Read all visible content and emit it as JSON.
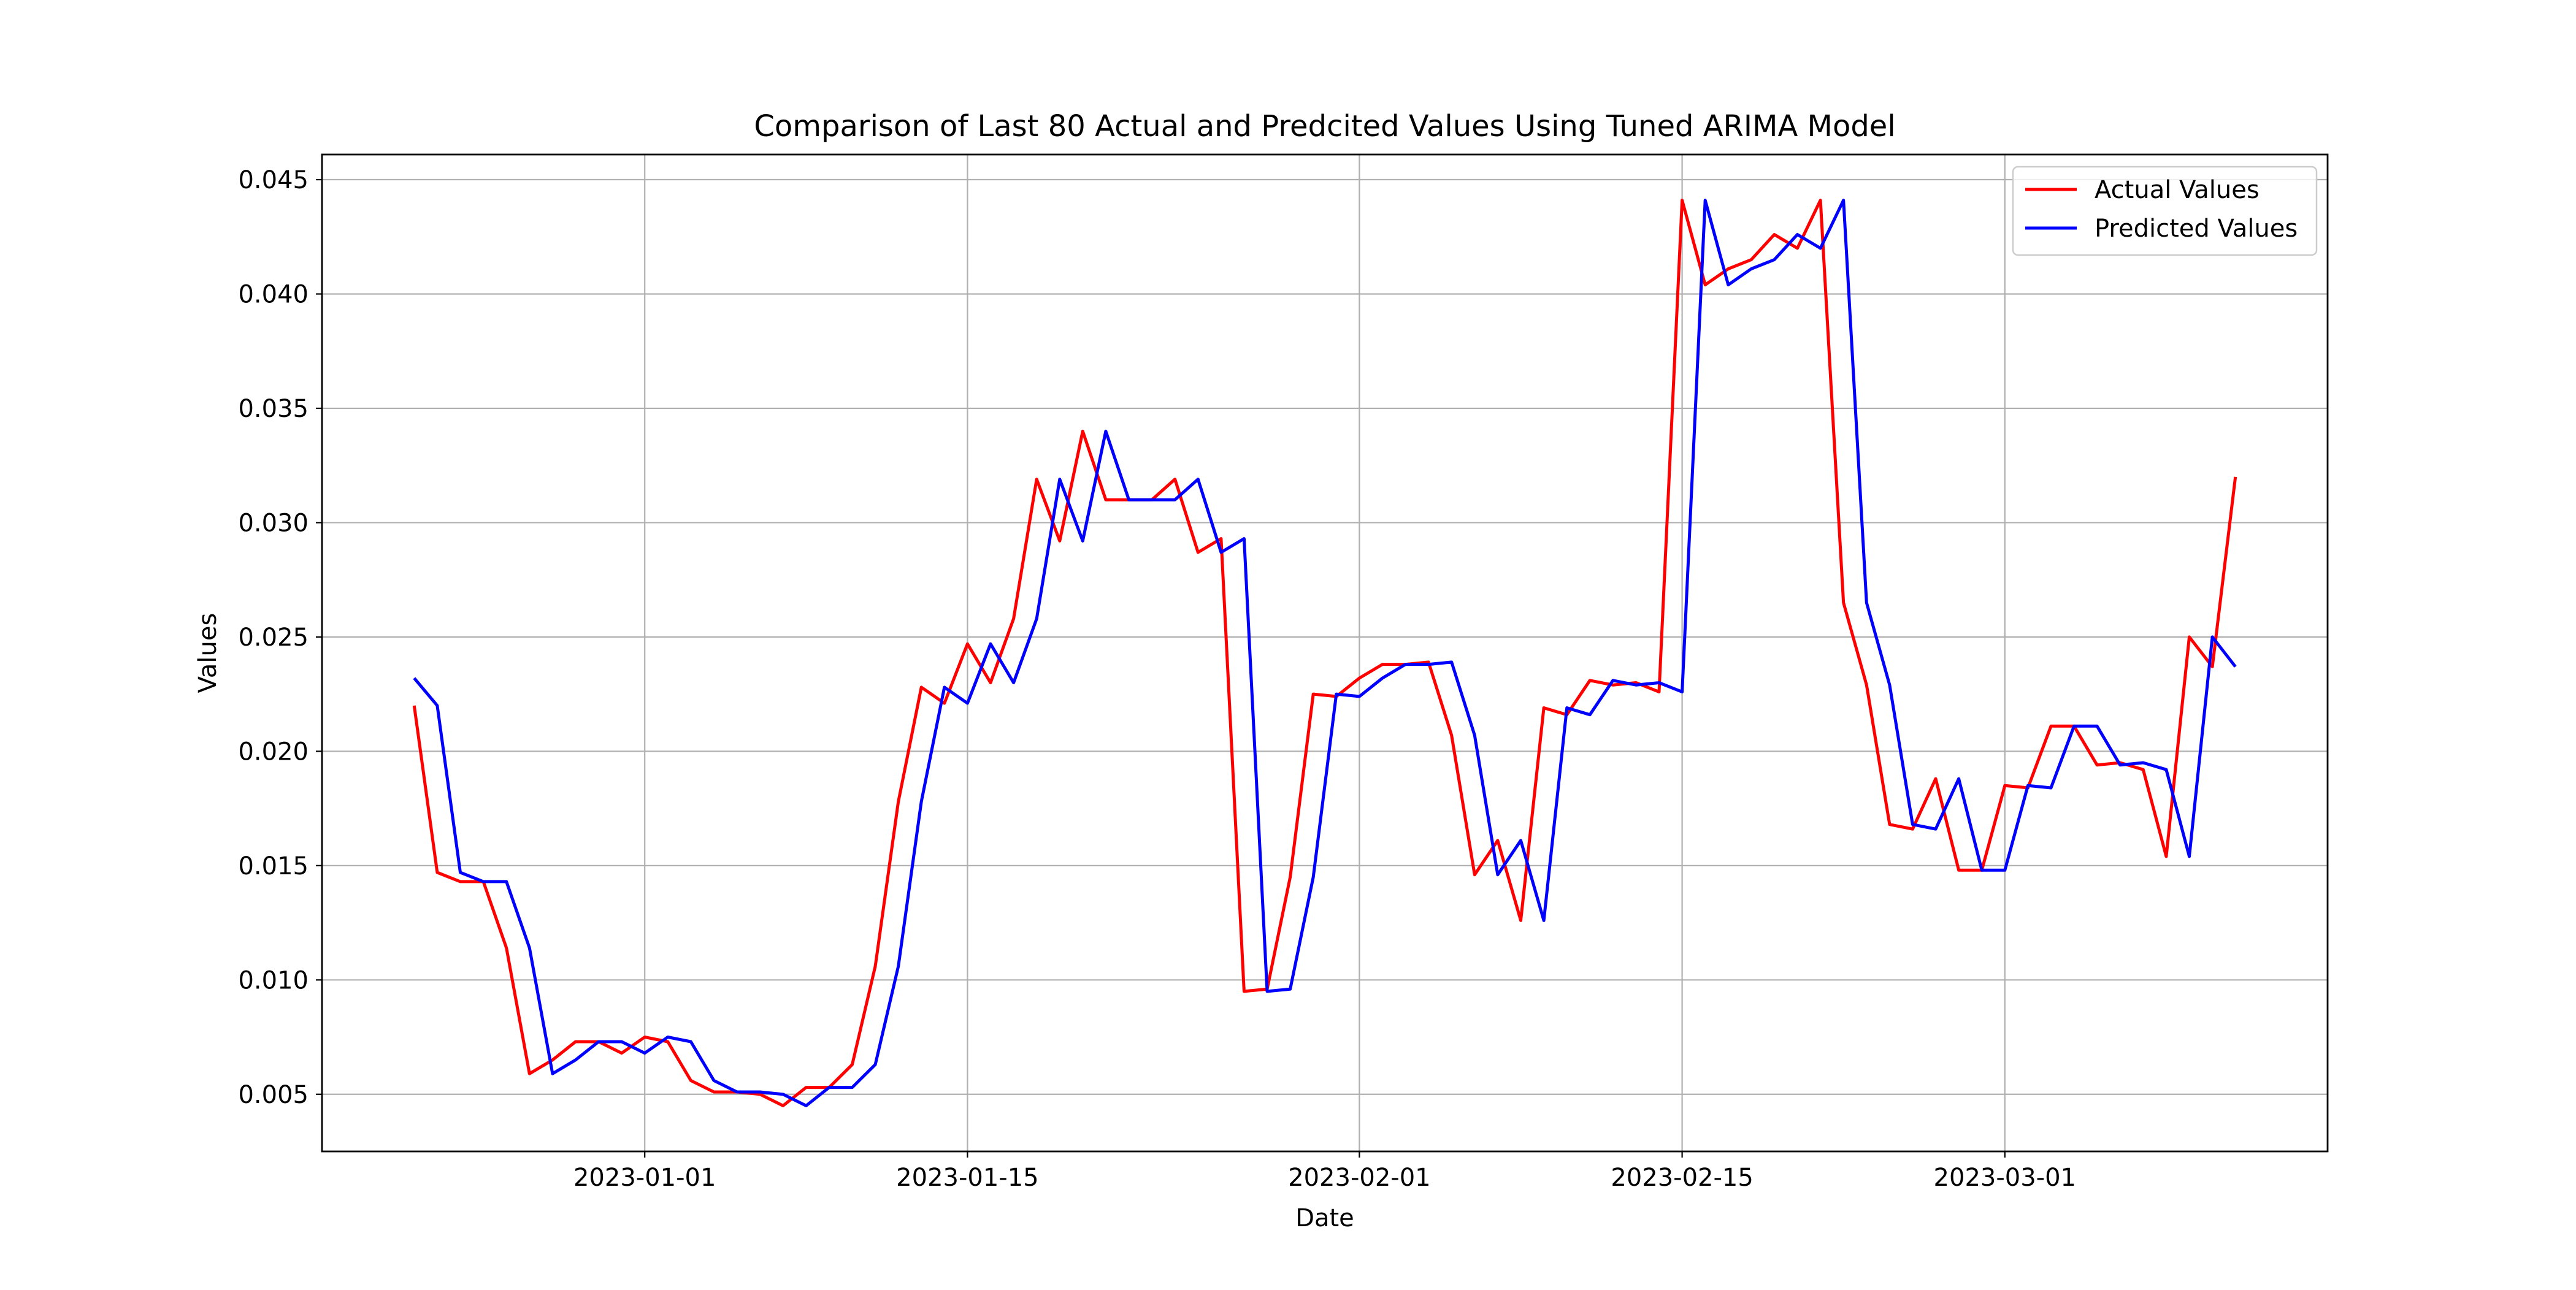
{
  "chart_data": {
    "type": "line",
    "title": "Comparison of Last 80 Actual and Predcited Values Using Tuned ARIMA Model",
    "xlabel": "Date",
    "ylabel": "Values",
    "x_ticks": [
      "2023-01-01",
      "2023-01-15",
      "2023-02-01",
      "2023-02-15",
      "2023-03-01"
    ],
    "y_ticks": [
      "0.005",
      "0.010",
      "0.015",
      "0.020",
      "0.025",
      "0.030",
      "0.035",
      "0.040",
      "0.045"
    ],
    "xlim": [
      "2022-12-18",
      "2023-03-15"
    ],
    "ylim": [
      0.0025,
      0.0461
    ],
    "grid": true,
    "legend_position": "top-right",
    "x_start": "2022-12-22",
    "series": [
      {
        "name": "Actual Values",
        "color": "#ff0000",
        "values": [
          0.022,
          0.0147,
          0.0143,
          0.0143,
          0.0114,
          0.0059,
          0.0065,
          0.0073,
          0.0073,
          0.0068,
          0.0075,
          0.0073,
          0.0056,
          0.0051,
          0.0051,
          0.005,
          0.0045,
          0.0053,
          0.0053,
          0.0063,
          0.0106,
          0.0178,
          0.0228,
          0.0221,
          0.0247,
          0.023,
          0.0258,
          0.0319,
          0.0292,
          0.034,
          0.031,
          0.031,
          0.031,
          0.0319,
          0.0287,
          0.0293,
          0.0095,
          0.0096,
          0.0145,
          0.0225,
          0.0224,
          0.0232,
          0.0238,
          0.0238,
          0.0239,
          0.0207,
          0.0146,
          0.0161,
          0.0126,
          0.0219,
          0.0216,
          0.0231,
          0.0229,
          0.023,
          0.0226,
          0.0441,
          0.0404,
          0.0411,
          0.0415,
          0.0426,
          0.042,
          0.0441,
          0.0265,
          0.0229,
          0.0168,
          0.0166,
          0.0188,
          0.0148,
          0.0148,
          0.0185,
          0.0184,
          0.0211,
          0.0211,
          0.0194,
          0.0195,
          0.0192,
          0.0154,
          0.025,
          0.0237,
          0.032
        ]
      },
      {
        "name": "Predicted Values",
        "color": "#0000ff",
        "values": [
          0.0232,
          0.022,
          0.0147,
          0.0143,
          0.0143,
          0.0114,
          0.0059,
          0.0065,
          0.0073,
          0.0073,
          0.0068,
          0.0075,
          0.0073,
          0.0056,
          0.0051,
          0.0051,
          0.005,
          0.0045,
          0.0053,
          0.0053,
          0.0063,
          0.0106,
          0.0178,
          0.0228,
          0.0221,
          0.0247,
          0.023,
          0.0258,
          0.0319,
          0.0292,
          0.034,
          0.031,
          0.031,
          0.031,
          0.0319,
          0.0287,
          0.0293,
          0.0095,
          0.0096,
          0.0145,
          0.0225,
          0.0224,
          0.0232,
          0.0238,
          0.0238,
          0.0239,
          0.0207,
          0.0146,
          0.0161,
          0.0126,
          0.0219,
          0.0216,
          0.0231,
          0.0229,
          0.023,
          0.0226,
          0.0441,
          0.0404,
          0.0411,
          0.0415,
          0.0426,
          0.042,
          0.0441,
          0.0265,
          0.0229,
          0.0168,
          0.0166,
          0.0188,
          0.0148,
          0.0148,
          0.0185,
          0.0184,
          0.0211,
          0.0211,
          0.0194,
          0.0195,
          0.0192,
          0.0154,
          0.025,
          0.0237
        ]
      }
    ]
  }
}
